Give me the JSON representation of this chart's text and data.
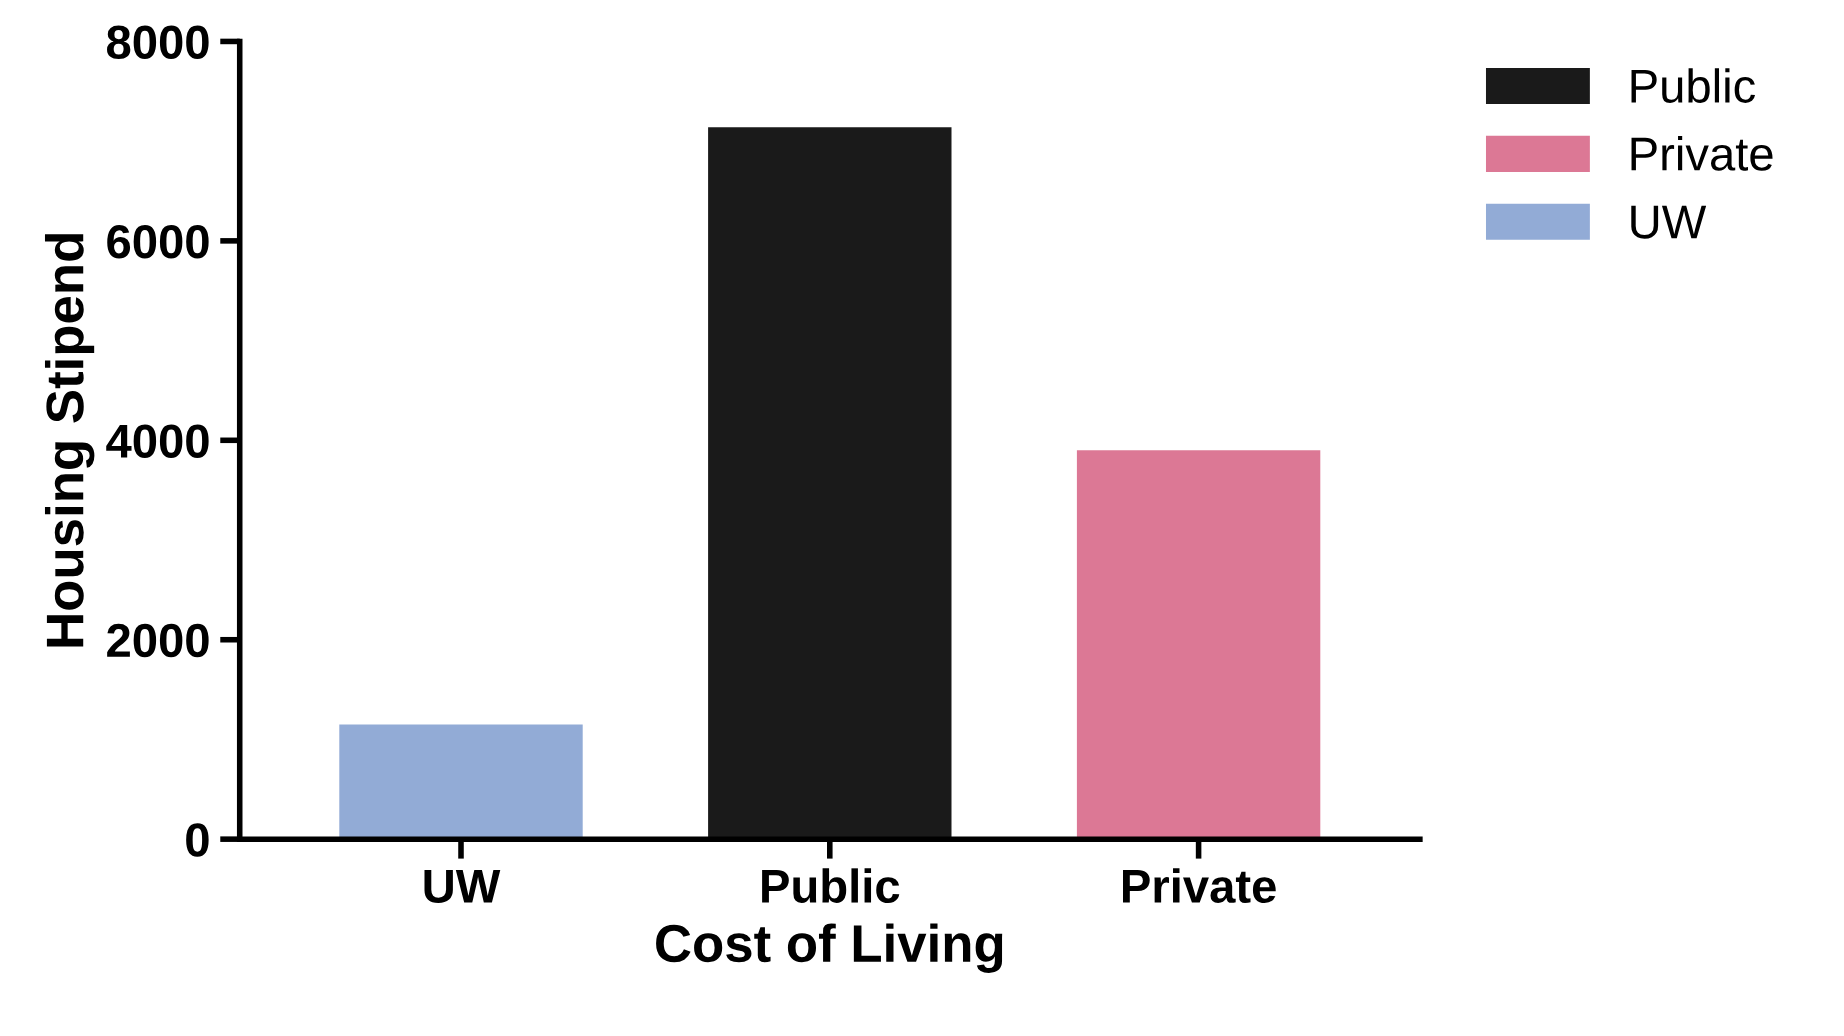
{
  "chart_data": {
    "type": "bar",
    "xlabel": "Cost of Living",
    "ylabel": "Housing Stipend",
    "categories": [
      "UW",
      "Public",
      "Private"
    ],
    "series": [
      {
        "name": "Public",
        "color": "#1a1a1a",
        "values": [
          null,
          7140,
          null
        ]
      },
      {
        "name": "Private",
        "color": "#dc7895",
        "values": [
          null,
          null,
          3900
        ]
      },
      {
        "name": "UW",
        "color": "#92abd6",
        "values": [
          1150,
          null,
          null
        ]
      }
    ],
    "ylim": [
      0,
      8000
    ],
    "yticks": [
      0,
      2000,
      4000,
      6000,
      8000
    ],
    "grid": false,
    "legend": "top right"
  }
}
